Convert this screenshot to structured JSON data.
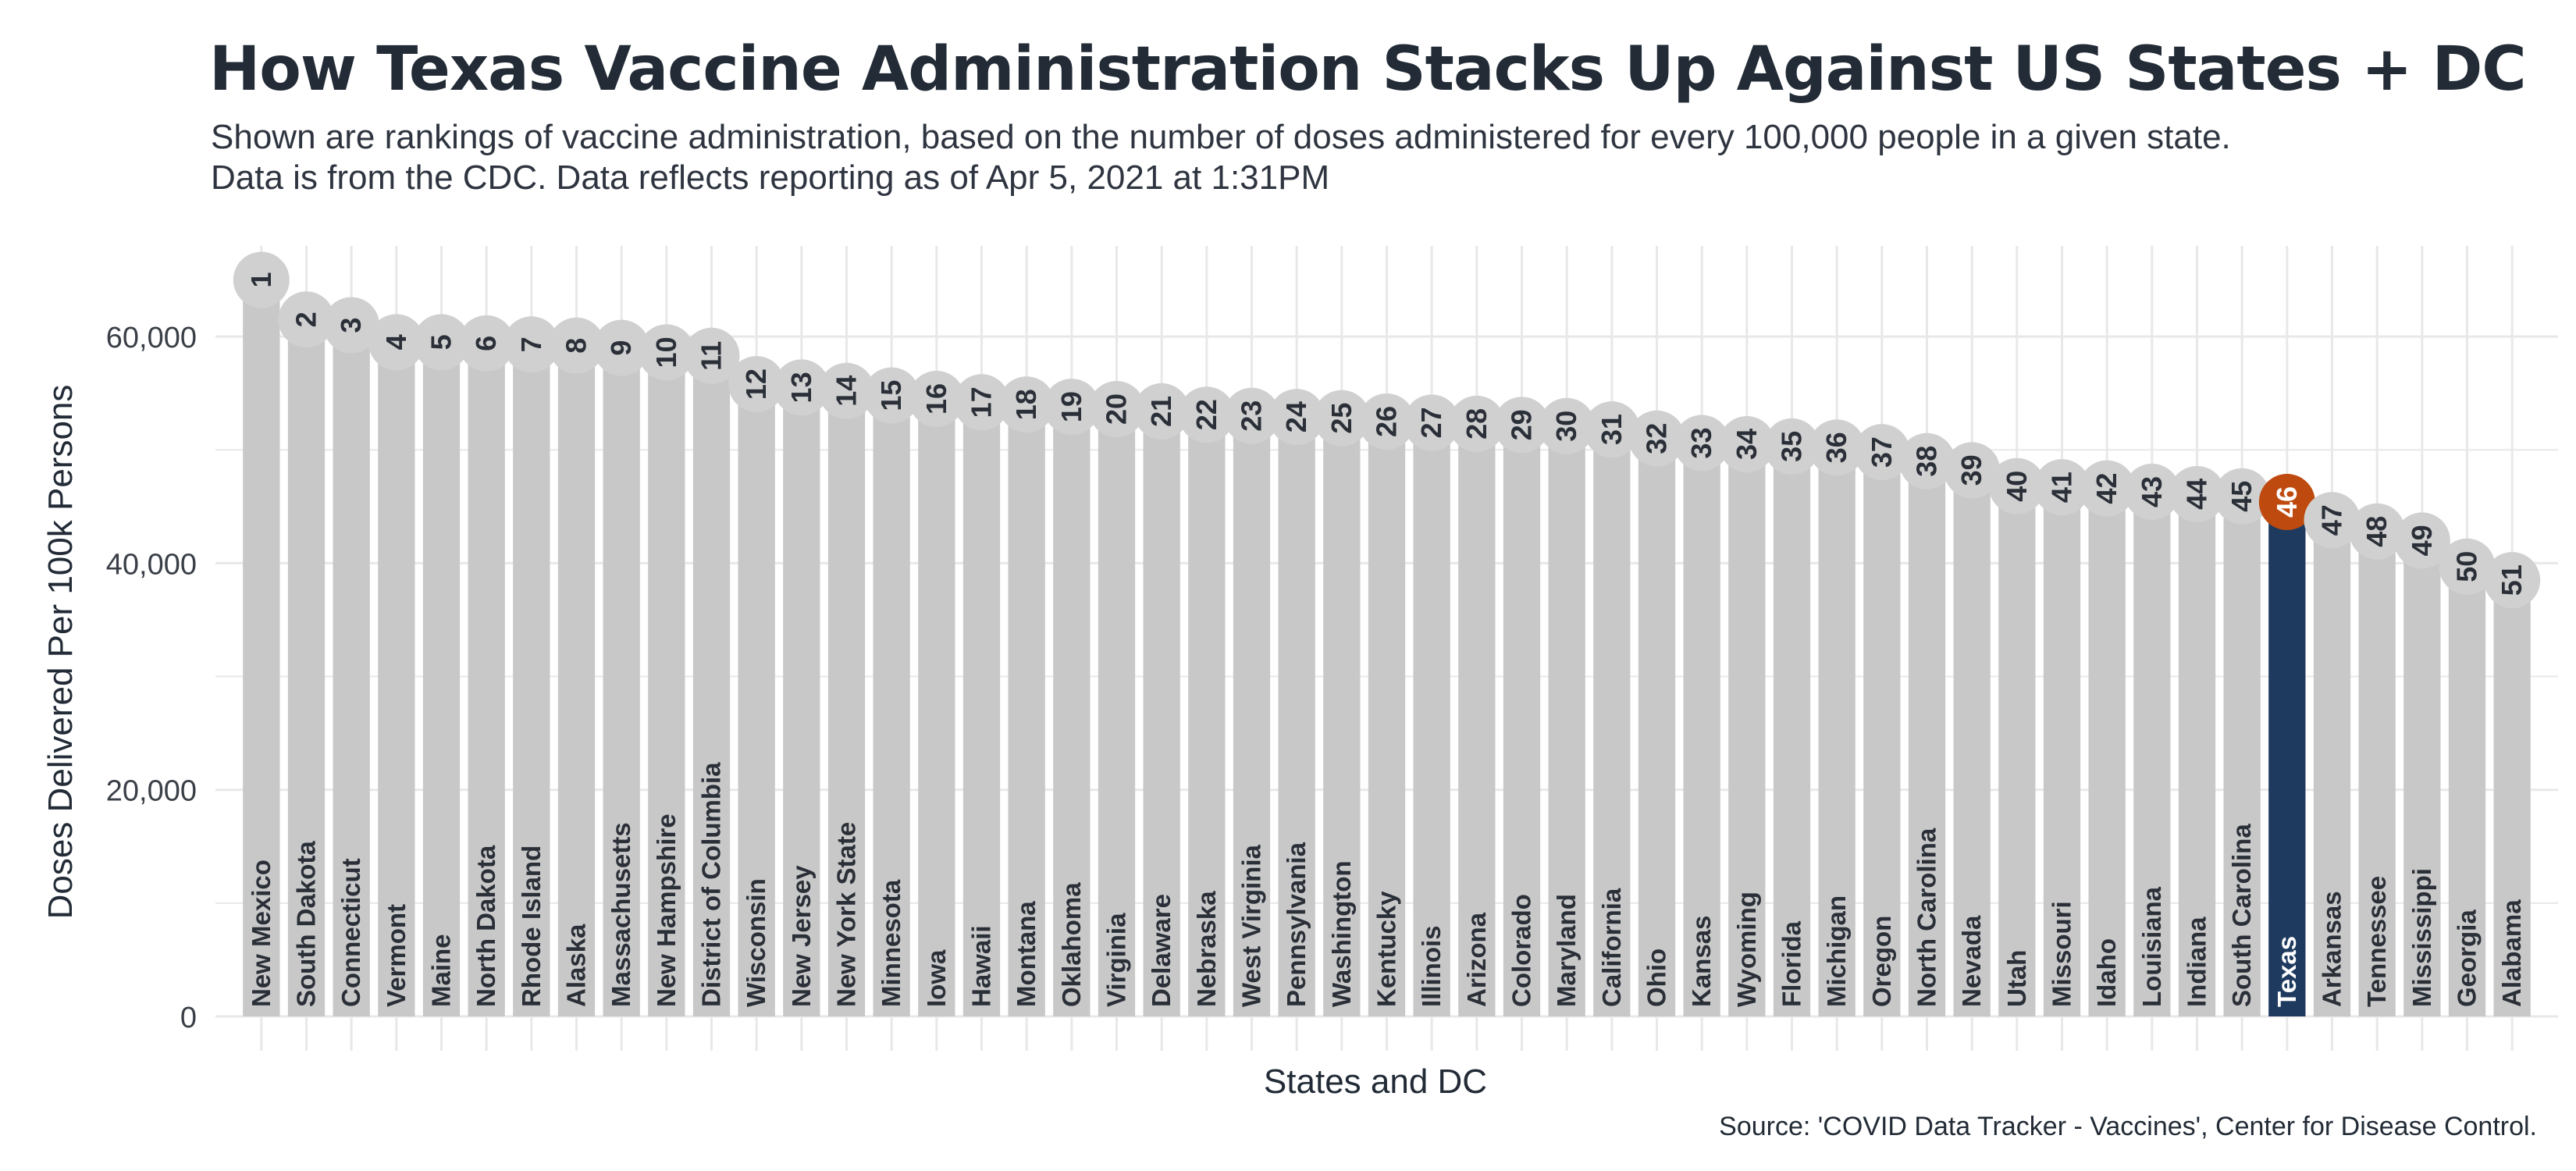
{
  "title": "How Texas Vaccine Administration Stacks Up Against US States + DC",
  "subtitle": "Shown are rankings of vaccine administration, based on the number of doses administered for every 100,000 people in a given state. Data is from the CDC. Data reflects reporting as of Apr 5, 2021 at 1:31PM",
  "caption": "Source: 'COVID Data Tracker - Vaccines', Center for Disease Control.",
  "colors": {
    "bar": "#c8c8c8",
    "highlight_bar": "#1e3a5f",
    "highlight_circle": "#bf4a0f",
    "circle": "#d0d0d0",
    "grid": "#e8e8e8",
    "text": "#222b36"
  },
  "chart_data": {
    "type": "bar",
    "xlabel": "States and DC",
    "ylabel": "Doses Delivered Per 100k Persons",
    "ylim": [
      0,
      68000
    ],
    "yticks": [
      0,
      20000,
      40000,
      60000
    ],
    "ytick_labels": [
      "0",
      "20,000",
      "40,000",
      "60,000"
    ],
    "grid": true,
    "highlight": "Texas",
    "categories": [
      "New Mexico",
      "South Dakota",
      "Connecticut",
      "Vermont",
      "Maine",
      "North Dakota",
      "Rhode Island",
      "Alaska",
      "Massachusetts",
      "New Hampshire",
      "District of Columbia",
      "Wisconsin",
      "New Jersey",
      "New York State",
      "Minnesota",
      "Iowa",
      "Hawaii",
      "Montana",
      "Oklahoma",
      "Virginia",
      "Delaware",
      "Nebraska",
      "West Virginia",
      "Pennsylvania",
      "Washington",
      "Kentucky",
      "Illinois",
      "Arizona",
      "Colorado",
      "Maryland",
      "California",
      "Ohio",
      "Kansas",
      "Wyoming",
      "Florida",
      "Michigan",
      "Oregon",
      "North Carolina",
      "Nevada",
      "Utah",
      "Missouri",
      "Idaho",
      "Louisiana",
      "Indiana",
      "South Carolina",
      "Texas",
      "Arkansas",
      "Tennessee",
      "Mississippi",
      "Georgia",
      "Alabama"
    ],
    "ranks": [
      "1",
      "2",
      "3",
      "4",
      "5",
      "6",
      "7",
      "8",
      "9",
      "10",
      "11",
      "12",
      "13",
      "14",
      "15",
      "16",
      "17",
      "18",
      "19",
      "20",
      "21",
      "22",
      "23",
      "24",
      "25",
      "26",
      "27",
      "28",
      "29",
      "30",
      "31",
      "32",
      "33",
      "34",
      "35",
      "36",
      "37",
      "38",
      "39",
      "40",
      "41",
      "42",
      "43",
      "44",
      "45",
      "46",
      "47",
      "48",
      "49",
      "50",
      "51"
    ],
    "values": [
      65000,
      61500,
      61000,
      59500,
      59500,
      59400,
      59300,
      59200,
      59000,
      58600,
      58300,
      55800,
      55500,
      55200,
      54800,
      54500,
      54200,
      54000,
      53800,
      53600,
      53400,
      53100,
      53000,
      52900,
      52800,
      52500,
      52400,
      52300,
      52200,
      52100,
      51800,
      51000,
      50600,
      50500,
      50300,
      50200,
      49800,
      49000,
      48200,
      46800,
      46700,
      46600,
      46300,
      46100,
      45900,
      45400,
      43800,
      42800,
      42000,
      39700,
      38500
    ]
  }
}
